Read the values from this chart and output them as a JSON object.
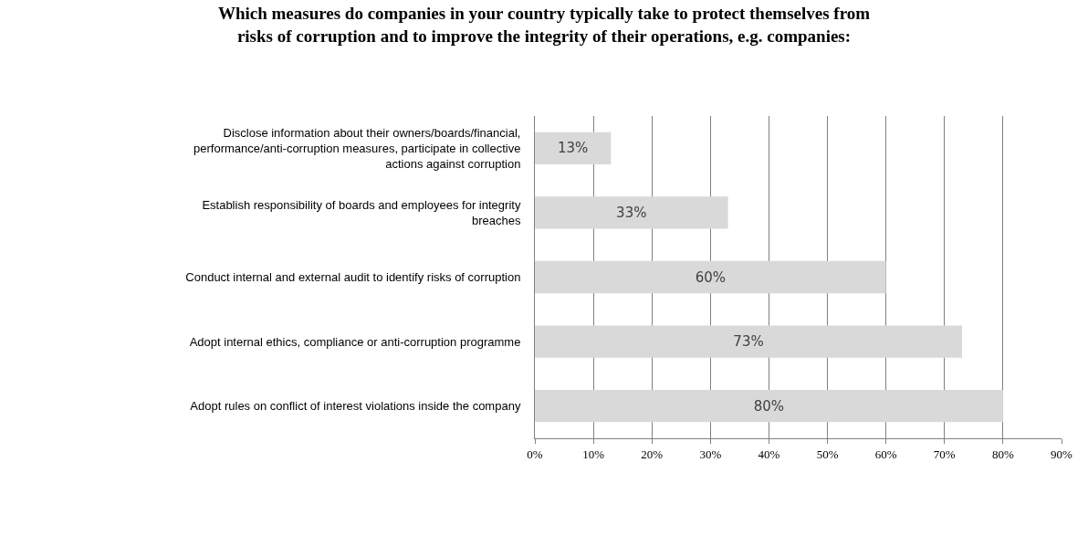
{
  "chart_data": {
    "type": "bar",
    "orientation": "horizontal",
    "title": "Which measures do companies in your country typically take to protect themselves from\nrisks of corruption and to improve the integrity of their operations, e.g. companies:",
    "categories": [
      "Disclose information about their owners/boards/financial,\nperformance/anti-corruption measures, participate in collective\nactions against corruption",
      "Establish responsibility of boards and employees for integrity\nbreaches",
      "Conduct internal and external audit to identify risks of corruption",
      "Adopt internal ethics, compliance or anti-corruption programme",
      "Adopt rules on conflict of interest violations inside the company"
    ],
    "values": [
      13,
      33,
      60,
      73,
      80
    ],
    "value_labels": [
      "13%",
      "33%",
      "60%",
      "73%",
      "80%"
    ],
    "color": "#d9d9d9",
    "xlim": [
      0,
      90
    ],
    "xticks": [
      {
        "value": 0,
        "label": "0%"
      },
      {
        "value": 10,
        "label": "10%"
      },
      {
        "value": 20,
        "label": "20%"
      },
      {
        "value": 30,
        "label": "30%"
      },
      {
        "value": 40,
        "label": "40%"
      },
      {
        "value": 50,
        "label": "50%"
      },
      {
        "value": 60,
        "label": "60%"
      },
      {
        "value": 70,
        "label": "70%"
      },
      {
        "value": 80,
        "label": "80%"
      },
      {
        "value": 90,
        "label": "90%"
      }
    ],
    "grid": "x",
    "legend": false
  }
}
